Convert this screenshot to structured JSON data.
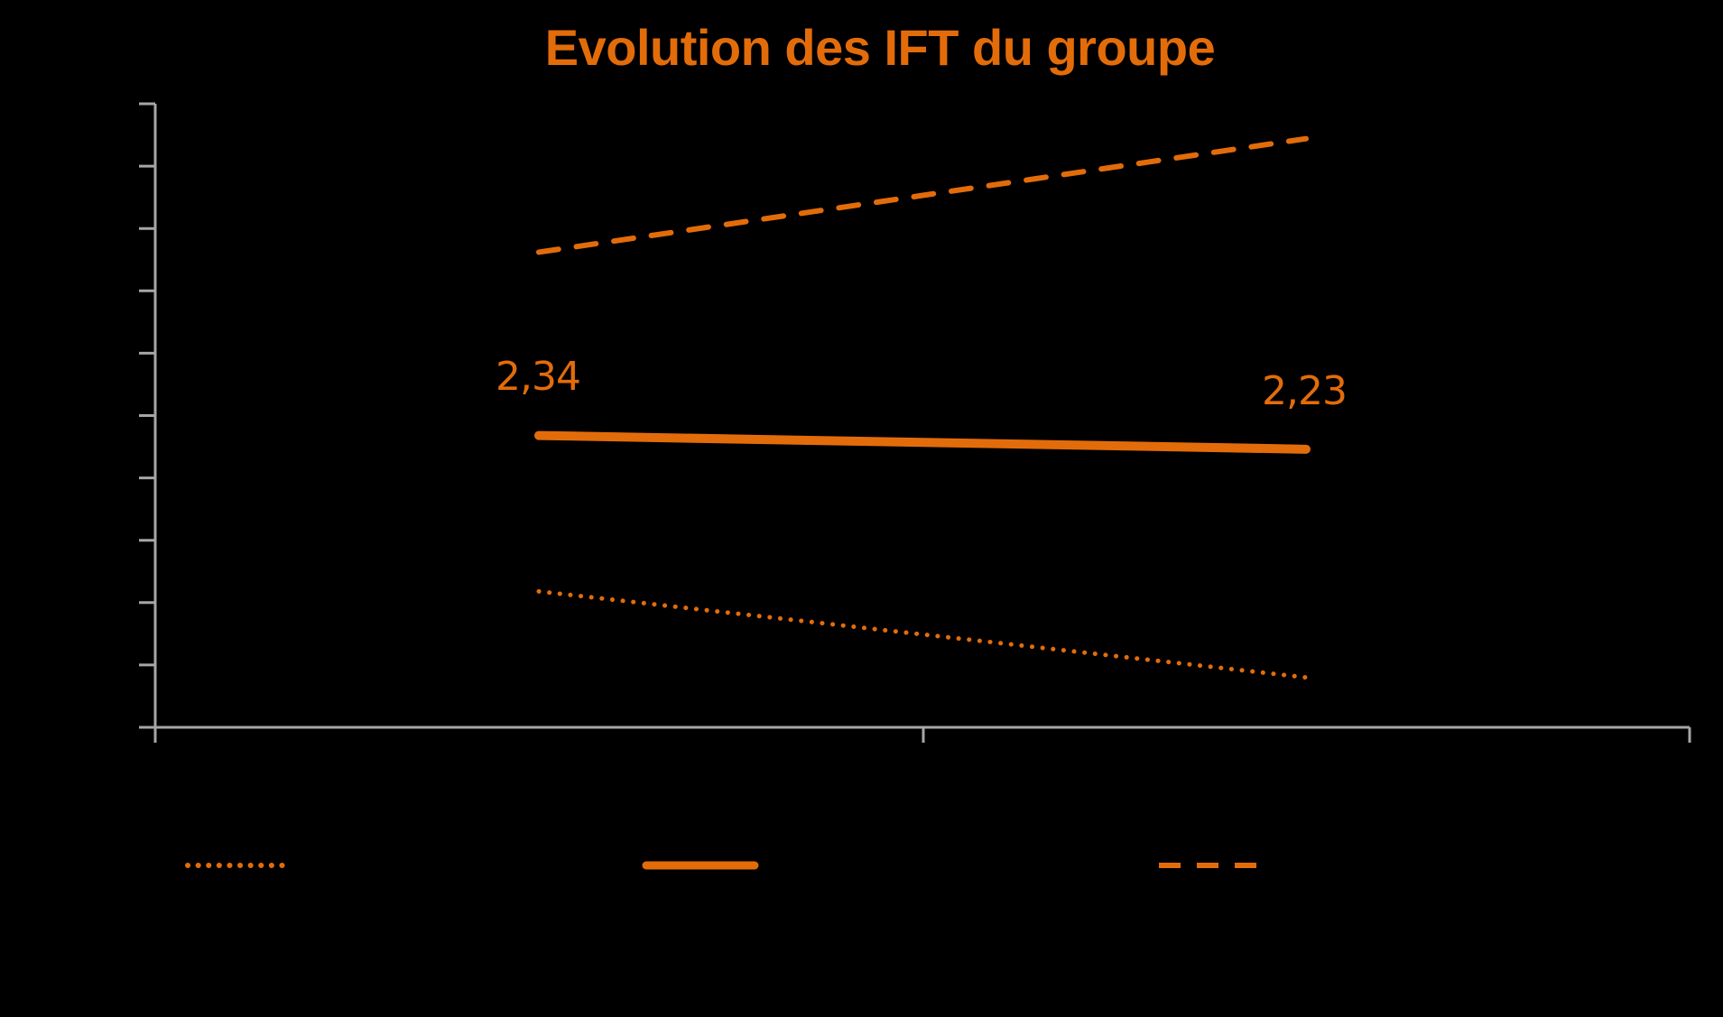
{
  "chart_data": {
    "type": "line",
    "title": "Evolution des IFT du groupe",
    "xlabel": "",
    "ylabel": "",
    "categories": [
      "",
      ""
    ],
    "ylim": [
      0,
      5
    ],
    "y_tick_step": 0.5,
    "grid": false,
    "legend_position": "bottom",
    "series": [
      {
        "name": "",
        "style": "dotted",
        "color": "#E36C0A",
        "values": [
          1.09,
          0.4
        ]
      },
      {
        "name": "",
        "style": "solid",
        "color": "#E36C0A",
        "values": [
          2.34,
          2.23
        ],
        "data_labels": [
          "2,34",
          "2,23"
        ]
      },
      {
        "name": "",
        "style": "dashed",
        "color": "#E36C0A",
        "values": [
          3.81,
          4.72
        ]
      }
    ]
  },
  "colors": {
    "accent": "#E36C0A",
    "axis": "#A6A6A6",
    "background": "#000000"
  },
  "labels": {
    "title": "Evolution des IFT du groupe",
    "point_1": "2,34",
    "point_2": "2,23"
  }
}
